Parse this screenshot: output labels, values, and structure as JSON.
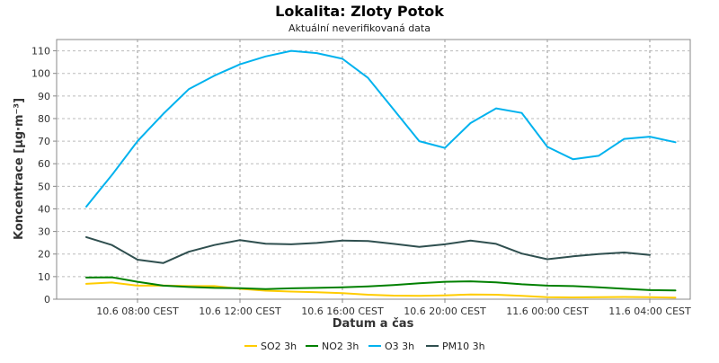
{
  "chart_data": {
    "type": "line",
    "title": "Lokalita: Zloty Potok",
    "subtitle": "Aktuální neverifikovaná data",
    "xlabel": "Datum a čas",
    "ylabel": "Koncentrace [µg·m⁻³]",
    "ylim": [
      0,
      115
    ],
    "yticks": [
      0,
      10,
      20,
      30,
      40,
      50,
      60,
      70,
      80,
      90,
      100,
      110
    ],
    "x": [
      "10.6 06:00 CEST",
      "10.6 07:00 CEST",
      "10.6 08:00 CEST",
      "10.6 09:00 CEST",
      "10.6 10:00 CEST",
      "10.6 11:00 CEST",
      "10.6 12:00 CEST",
      "10.6 13:00 CEST",
      "10.6 14:00 CEST",
      "10.6 15:00 CEST",
      "10.6 16:00 CEST",
      "10.6 17:00 CEST",
      "10.6 18:00 CEST",
      "10.6 19:00 CEST",
      "10.6 20:00 CEST",
      "10.6 21:00 CEST",
      "10.6 22:00 CEST",
      "10.6 23:00 CEST",
      "11.6 00:00 CEST",
      "11.6 01:00 CEST",
      "11.6 02:00 CEST",
      "11.6 03:00 CEST",
      "11.6 04:00 CEST",
      "11.6 05:00 CEST"
    ],
    "xticks": [
      "10.6 08:00 CEST",
      "10.6 12:00 CEST",
      "10.6 16:00 CEST",
      "10.6 20:00 CEST",
      "11.6 00:00 CEST",
      "11.6 04:00 CEST"
    ],
    "xgrid": [
      "10.6 08:00 CEST",
      "10.6 12:00 CEST",
      "10.6 16:00 CEST",
      "10.6 20:00 CEST",
      "11.6 00:00 CEST",
      "11.6 04:00 CEST"
    ],
    "grid": true,
    "legend_position": "bottom",
    "series": [
      {
        "name": "SO2 3h",
        "color": "#ffcc00",
        "values": [
          6.8,
          7.4,
          6.0,
          6.1,
          5.8,
          5.8,
          4.6,
          3.8,
          3.4,
          3.1,
          2.7,
          2.0,
          1.6,
          1.5,
          1.7,
          2.1,
          2.0,
          1.5,
          0.9,
          0.8,
          0.9,
          1.0,
          0.9,
          0.7
        ]
      },
      {
        "name": "NO2 3h",
        "color": "#008000",
        "values": [
          9.6,
          9.7,
          7.7,
          6.0,
          5.4,
          5.0,
          4.9,
          4.5,
          4.8,
          5.0,
          5.3,
          5.7,
          6.3,
          7.1,
          7.7,
          7.9,
          7.5,
          6.6,
          6.0,
          5.8,
          5.3,
          4.6,
          4.0,
          3.9
        ]
      },
      {
        "name": "O3 3h",
        "color": "#00b2ee",
        "values": [
          41,
          55,
          70,
          82,
          93,
          99,
          104,
          107.5,
          110,
          109,
          106.5,
          98,
          84,
          70,
          67,
          78,
          84.5,
          82.5,
          67.5,
          62,
          63.5,
          71,
          72,
          69.5
        ]
      },
      {
        "name": "PM10 3h",
        "color": "#2f4f4f",
        "values": [
          27.5,
          24,
          17.5,
          16,
          21,
          24,
          26.2,
          24.6,
          24.3,
          24.9,
          26,
          25.8,
          24.5,
          23.2,
          24.3,
          26,
          24.5,
          20.2,
          17.7,
          19,
          20,
          20.7,
          19.6,
          null
        ]
      }
    ]
  }
}
